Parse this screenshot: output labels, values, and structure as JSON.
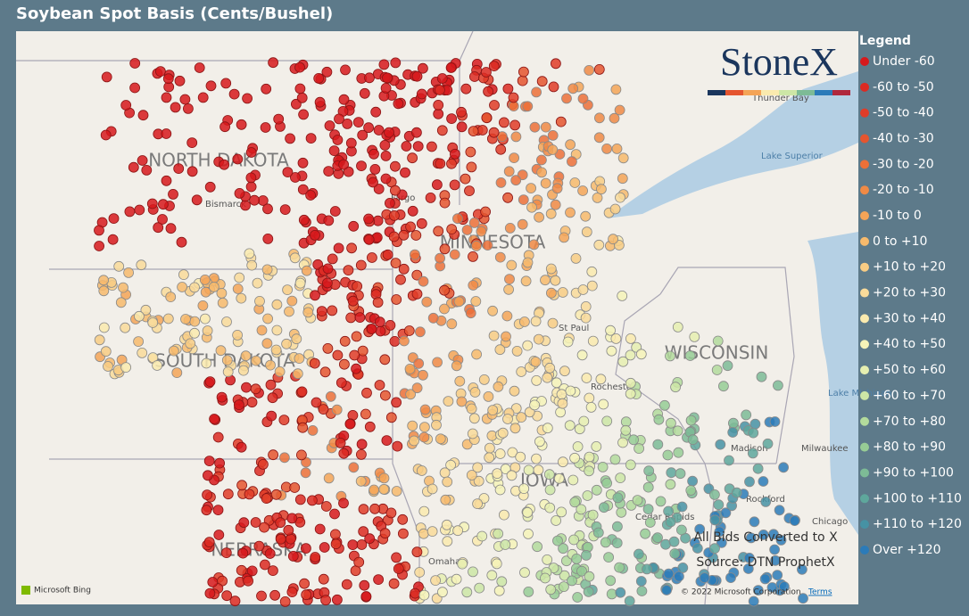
{
  "header": {
    "title": "Soybean Spot Basis (Cents/Bushel)"
  },
  "logo": "StoneX",
  "legend": {
    "title": "Legend",
    "items": [
      {
        "label": "Under -60",
        "color": "#d7191c"
      },
      {
        "label": "-60 to -50",
        "color": "#dc2a22"
      },
      {
        "label": "-50 to -40",
        "color": "#e03c28"
      },
      {
        "label": "-40 to -30",
        "color": "#e5552f"
      },
      {
        "label": "-30 to -20",
        "color": "#ec7038"
      },
      {
        "label": "-20 to -10",
        "color": "#f08a45"
      },
      {
        "label": "-10 to 0",
        "color": "#f4a457"
      },
      {
        "label": "0 to +10",
        "color": "#f7ba6c"
      },
      {
        "label": "+10 to +20",
        "color": "#f8cc84"
      },
      {
        "label": "+20 to +30",
        "color": "#f9db9a"
      },
      {
        "label": "+30 to +40",
        "color": "#faeaae"
      },
      {
        "label": "+40 to +50",
        "color": "#f6f3b8"
      },
      {
        "label": "+50 to +60",
        "color": "#e6efb0"
      },
      {
        "label": "+60 to +70",
        "color": "#cde6a6"
      },
      {
        "label": "+70 to +80",
        "color": "#b3db9c"
      },
      {
        "label": "+80 to +90",
        "color": "#97cc95"
      },
      {
        "label": "+90 to +100",
        "color": "#7dbb96"
      },
      {
        "label": "+100 to +110",
        "color": "#5ea79c"
      },
      {
        "label": "+110 to +120",
        "color": "#4692a4"
      },
      {
        "label": "Over +120",
        "color": "#2b7bb9"
      }
    ]
  },
  "map": {
    "states": [
      "NORTH DAKOTA",
      "SOUTH DAKOTA",
      "MINNESOTA",
      "WISCONSIN",
      "NEBRASKA",
      "IOWA"
    ],
    "cities": [
      "Bismarck",
      "Fargo",
      "St Paul",
      "Rochester",
      "Madison",
      "Milwaukee",
      "Rockford",
      "Chicago",
      "Cedar Rapids",
      "Omaha",
      "Thunder Bay"
    ],
    "water": [
      "Lake Superior",
      "Lake Michigan"
    ],
    "notes": [
      "All Bids Converted to X",
      "Source: DTN ProphetX"
    ],
    "attribution": {
      "provider": "Microsoft Bing",
      "copyright": "© 2022 Microsoft Corporation",
      "terms": "Terms"
    }
  }
}
